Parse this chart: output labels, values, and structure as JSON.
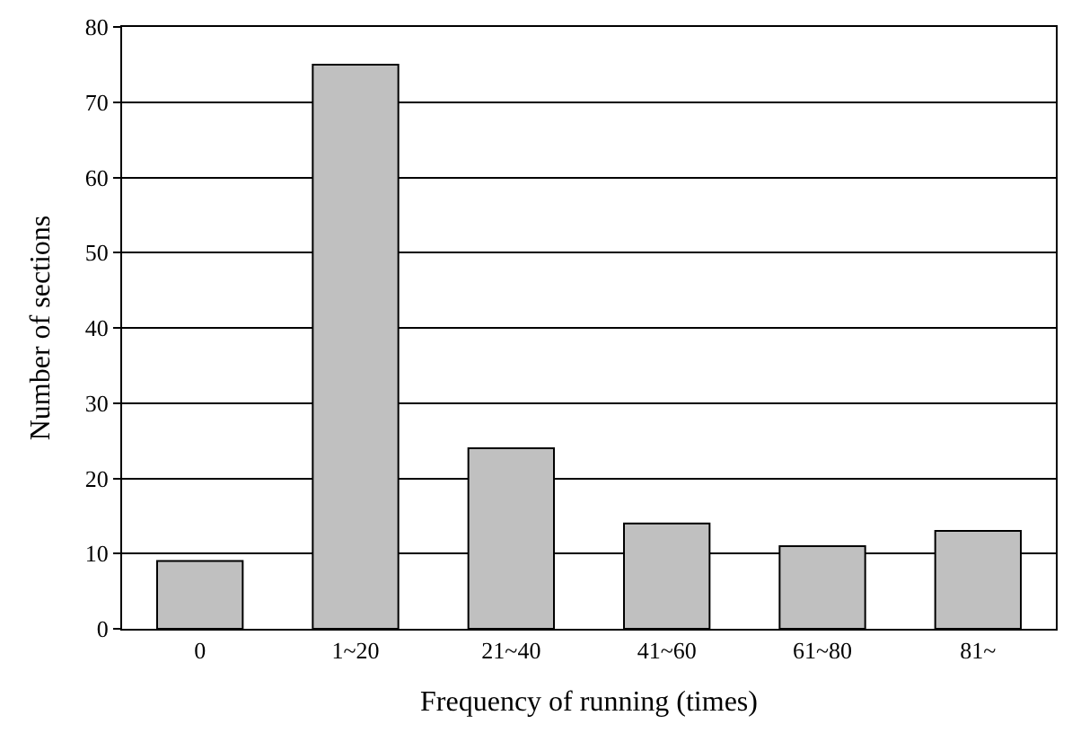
{
  "chart_data": {
    "type": "bar",
    "xlabel": "Frequency of running (times)",
    "ylabel": "Number of sections",
    "categories": [
      "0",
      "1~20",
      "21~40",
      "41~60",
      "61~80",
      "81~"
    ],
    "values": [
      9,
      75,
      24,
      14,
      11,
      13
    ],
    "color": "#c0c0c0",
    "ylim": [
      0,
      80
    ],
    "yticks": [
      0,
      10,
      20,
      30,
      40,
      50,
      60,
      70,
      80
    ],
    "grid": "y",
    "legend": false
  }
}
